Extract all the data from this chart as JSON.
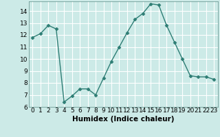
{
  "x": [
    0,
    1,
    2,
    3,
    4,
    5,
    6,
    7,
    8,
    9,
    10,
    11,
    12,
    13,
    14,
    15,
    16,
    17,
    18,
    19,
    20,
    21,
    22,
    23
  ],
  "y": [
    11.8,
    12.1,
    12.8,
    12.5,
    6.4,
    6.9,
    7.5,
    7.5,
    7.0,
    8.4,
    9.8,
    11.0,
    12.2,
    13.3,
    13.8,
    14.6,
    14.5,
    12.8,
    11.4,
    10.0,
    8.6,
    8.5,
    8.5,
    8.3
  ],
  "line_color": "#2d7d74",
  "marker": "D",
  "marker_size": 2.5,
  "bg_color": "#cceae7",
  "grid_color": "#ffffff",
  "xlabel": "Humidex (Indice chaleur)",
  "ylim": [
    6,
    14.8
  ],
  "xlim": [
    -0.5,
    23.5
  ],
  "yticks": [
    6,
    7,
    8,
    9,
    10,
    11,
    12,
    13,
    14
  ],
  "xticks": [
    0,
    1,
    2,
    3,
    4,
    5,
    6,
    7,
    8,
    9,
    10,
    11,
    12,
    13,
    14,
    15,
    16,
    17,
    18,
    19,
    20,
    21,
    22,
    23
  ],
  "tick_fontsize": 6.5,
  "xlabel_fontsize": 7.5,
  "line_width": 1.0,
  "spine_color": "#5a8a84"
}
